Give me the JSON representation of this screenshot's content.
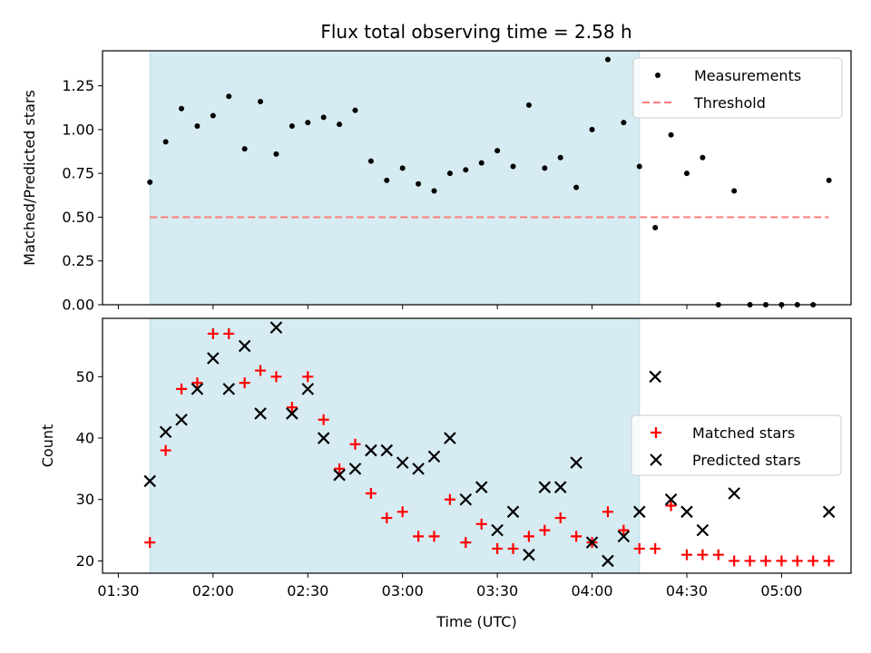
{
  "title": "Flux total observing time = 2.58 h",
  "colors": {
    "highlight": "#add8e6",
    "threshold": "#ff7b7b",
    "measurement": "#000000",
    "matched": "#ff0000",
    "predicted": "#000000"
  },
  "chart_data": [
    {
      "type": "scatter",
      "panel": "top",
      "ylabel": "Matched/Predicted stars",
      "xlim": [
        "01:25",
        "05:22"
      ],
      "ylim": [
        0,
        1.45
      ],
      "yticks": [
        0.0,
        0.25,
        0.5,
        0.75,
        1.0,
        1.25
      ],
      "ytick_labels": [
        "0.00",
        "0.25",
        "0.50",
        "0.75",
        "1.00",
        "1.25"
      ],
      "highlight_span": [
        "01:40",
        "04:15"
      ],
      "legend_position": "top-right",
      "series": [
        {
          "name": "Measurements",
          "marker": "dot",
          "x": [
            "01:40",
            "01:45",
            "01:50",
            "01:55",
            "02:00",
            "02:05",
            "02:10",
            "02:15",
            "02:20",
            "02:25",
            "02:30",
            "02:35",
            "02:40",
            "02:45",
            "02:50",
            "02:55",
            "03:00",
            "03:05",
            "03:10",
            "03:15",
            "03:20",
            "03:25",
            "03:30",
            "03:35",
            "03:40",
            "03:45",
            "03:50",
            "03:55",
            "04:00",
            "04:05",
            "04:10",
            "04:15",
            "04:20",
            "04:25",
            "04:30",
            "04:35",
            "04:40",
            "04:45",
            "04:50",
            "04:55",
            "05:00",
            "05:05",
            "05:10",
            "05:15"
          ],
          "y": [
            0.7,
            0.93,
            1.12,
            1.02,
            1.08,
            1.19,
            0.89,
            1.16,
            0.86,
            1.02,
            1.04,
            1.07,
            1.03,
            1.11,
            0.82,
            0.71,
            0.78,
            0.69,
            0.65,
            0.75,
            0.77,
            0.81,
            0.88,
            0.79,
            1.14,
            0.78,
            0.84,
            0.67,
            1.0,
            1.4,
            1.04,
            0.79,
            0.44,
            0.97,
            0.75,
            0.84,
            0.0,
            0.65,
            0.0,
            0.0,
            0.0,
            0.0,
            0.0,
            0.71
          ]
        },
        {
          "name": "Threshold",
          "style": "dashed",
          "x": [
            "01:40",
            "05:15"
          ],
          "y": [
            0.5,
            0.5
          ]
        }
      ]
    },
    {
      "type": "scatter",
      "panel": "bottom",
      "xlabel": "Time (UTC)",
      "ylabel": "Count",
      "xlim": [
        "01:25",
        "05:22"
      ],
      "ylim": [
        18,
        59.5
      ],
      "yticks": [
        20,
        30,
        40,
        50
      ],
      "xticks": [
        "01:30",
        "02:00",
        "02:30",
        "03:00",
        "03:30",
        "04:00",
        "04:30",
        "05:00"
      ],
      "highlight_span": [
        "01:40",
        "04:15"
      ],
      "legend_position": "center-right",
      "series": [
        {
          "name": "Matched stars",
          "marker": "plus",
          "x": [
            "01:40",
            "01:45",
            "01:50",
            "01:55",
            "02:00",
            "02:05",
            "02:10",
            "02:15",
            "02:20",
            "02:25",
            "02:30",
            "02:35",
            "02:40",
            "02:45",
            "02:50",
            "02:55",
            "03:00",
            "03:05",
            "03:10",
            "03:15",
            "03:20",
            "03:25",
            "03:30",
            "03:35",
            "03:40",
            "03:45",
            "03:50",
            "03:55",
            "04:00",
            "04:05",
            "04:10",
            "04:15",
            "04:20",
            "04:25",
            "04:30",
            "04:35",
            "04:40",
            "04:45",
            "04:50",
            "04:55",
            "05:00",
            "05:05",
            "05:10",
            "05:15"
          ],
          "y": [
            23,
            38,
            48,
            49,
            57,
            57,
            49,
            51,
            50,
            45,
            50,
            43,
            35,
            39,
            31,
            27,
            28,
            24,
            24,
            30,
            23,
            26,
            22,
            22,
            24,
            25,
            27,
            24,
            23,
            28,
            25,
            22,
            22,
            29,
            21,
            21,
            21,
            20,
            20,
            20,
            20,
            20,
            20,
            20
          ]
        },
        {
          "name": "Predicted stars",
          "marker": "x",
          "x": [
            "01:40",
            "01:45",
            "01:50",
            "01:55",
            "02:00",
            "02:05",
            "02:10",
            "02:15",
            "02:20",
            "02:25",
            "02:30",
            "02:35",
            "02:40",
            "02:45",
            "02:50",
            "02:55",
            "03:00",
            "03:05",
            "03:10",
            "03:15",
            "03:20",
            "03:25",
            "03:30",
            "03:35",
            "03:40",
            "03:45",
            "03:50",
            "03:55",
            "04:00",
            "04:05",
            "04:10",
            "04:15",
            "04:20",
            "04:25",
            "04:30",
            "04:35",
            "04:45",
            "05:15"
          ],
          "y": [
            33,
            41,
            43,
            48,
            53,
            48,
            55,
            44,
            58,
            44,
            48,
            40,
            34,
            35,
            38,
            38,
            36,
            35,
            37,
            40,
            30,
            32,
            25,
            28,
            21,
            32,
            32,
            36,
            23,
            20,
            24,
            28,
            50,
            30,
            28,
            25,
            31,
            28
          ]
        }
      ]
    }
  ]
}
